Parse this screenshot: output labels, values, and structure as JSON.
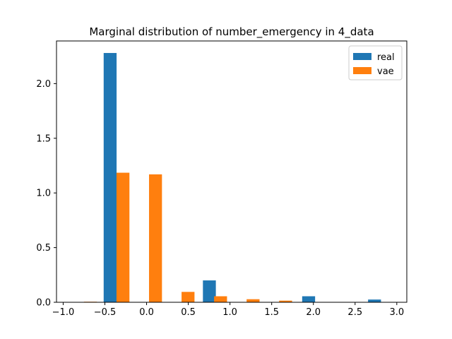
{
  "chart_data": {
    "type": "bar",
    "title": "Marginal distribution of number_emergency in 4_data",
    "xlabel": "",
    "ylabel": "",
    "xlim": [
      -1.08,
      3.12
    ],
    "ylim": [
      0,
      2.39
    ],
    "grid": false,
    "legend_position": "top-right",
    "bin_width": 0.155,
    "x_ticks": [
      {
        "value": -1.0,
        "label": "−1.0"
      },
      {
        "value": -0.5,
        "label": "−0.5"
      },
      {
        "value": 0.0,
        "label": "0.0"
      },
      {
        "value": 0.5,
        "label": "0.5"
      },
      {
        "value": 1.0,
        "label": "1.0"
      },
      {
        "value": 1.5,
        "label": "1.5"
      },
      {
        "value": 2.0,
        "label": "2.0"
      },
      {
        "value": 2.5,
        "label": "2.5"
      },
      {
        "value": 3.0,
        "label": "3.0"
      }
    ],
    "y_ticks": [
      {
        "value": 0.0,
        "label": "0.0"
      },
      {
        "value": 0.5,
        "label": "0.5"
      },
      {
        "value": 1.0,
        "label": "1.0"
      },
      {
        "value": 1.5,
        "label": "1.5"
      },
      {
        "value": 2.0,
        "label": "2.0"
      }
    ],
    "series": [
      {
        "name": "real",
        "color": "#1f77b4",
        "x": [
          -0.437,
          0.753,
          1.943,
          2.733
        ],
        "values": [
          2.28,
          0.2,
          0.055,
          0.025
        ]
      },
      {
        "name": "vae",
        "color": "#ff7f0e",
        "x": [
          -0.673,
          -0.283,
          0.107,
          0.497,
          0.887,
          1.277,
          1.667
        ],
        "values": [
          0.005,
          1.185,
          1.17,
          0.095,
          0.055,
          0.028,
          0.015
        ]
      }
    ]
  }
}
